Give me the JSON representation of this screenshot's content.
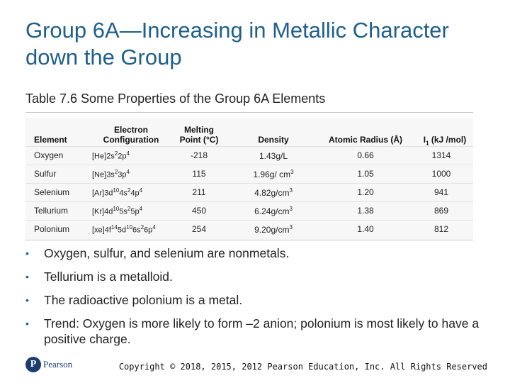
{
  "slide": {
    "title": "Group 6A—Increasing in Metallic Character down the Group",
    "table_caption": "Table 7.6 Some Properties of the Group 6A Elements",
    "copyright": "Copyright © 2018, 2015, 2012 Pearson Education, Inc. All Rights Reserved",
    "logo_text": "Pearson",
    "logo_mark": "P"
  },
  "table": {
    "headers": {
      "element": "Element",
      "config_line1": "Electron",
      "config_line2": "Configuration",
      "mp_line1": "Melting",
      "mp_line2": "Point (°C)",
      "density": "Density",
      "radius": "Atomic Radius (Å)",
      "ie_main": "I",
      "ie_sub": "1",
      "ie_rest": " (kJ /mol)"
    },
    "rows": [
      {
        "element": "Oxygen",
        "core": "[He]",
        "cfg": [
          "2s",
          "2",
          "2p",
          "4"
        ],
        "mp": "-218",
        "density": "1.43g/L",
        "density_exp": "",
        "radius": "0.66",
        "ie": "1314"
      },
      {
        "element": "Sulfur",
        "core": "[Ne]",
        "cfg": [
          "3s",
          "2",
          "3p",
          "4"
        ],
        "mp": "115",
        "density": "1.96g/ cm",
        "density_exp": "3",
        "radius": "1.05",
        "ie": "1000"
      },
      {
        "element": "Selenium",
        "core": "[Ar]",
        "cfg": [
          "3d",
          "10",
          "4s",
          "2",
          "4p",
          "4"
        ],
        "mp": "211",
        "density": "4.82g/cm",
        "density_exp": "3",
        "radius": "1.20",
        "ie": "941"
      },
      {
        "element": "Tellurium",
        "core": "[Kr]",
        "cfg": [
          "4d",
          "10",
          "5s",
          "2",
          "5p",
          "4"
        ],
        "mp": "450",
        "density": "6.24g/cm",
        "density_exp": "3",
        "radius": "1.38",
        "ie": "869"
      },
      {
        "element": "Polonium",
        "core": "[xe]",
        "cfg": [
          "4f",
          "14",
          "5d",
          "10",
          "6s",
          "2",
          "6p",
          "4"
        ],
        "mp": "254",
        "density": "9.20g/cm",
        "density_exp": "3",
        "radius": "1.40",
        "ie": "812"
      }
    ]
  },
  "bullets": [
    "Oxygen, sulfur, and selenium are nonmetals.",
    "Tellurium is a metalloid.",
    "The radioactive polonium is a metal.",
    "Trend: Oxygen is more likely to form –2 anion; polonium is most likely to have a positive charge."
  ],
  "colors": {
    "title": "#1f5f8b",
    "bullet": "#1f5f8b",
    "logo": "#1b3d6d"
  },
  "icons": {
    "bullet": "bullet-dot-icon",
    "logo": "pearson-logo-icon"
  }
}
